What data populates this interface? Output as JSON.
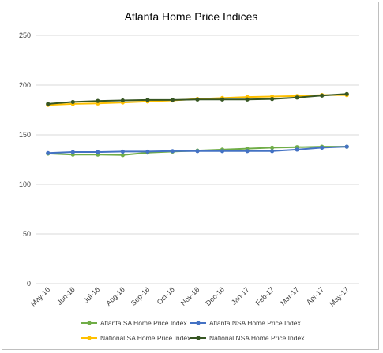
{
  "chart_data": {
    "type": "line",
    "title": "Atlanta Home Price Indices",
    "xlabel": "",
    "ylabel": "",
    "ylim": [
      0,
      250
    ],
    "yticks": [
      0,
      50,
      100,
      150,
      200,
      250
    ],
    "grid": true,
    "legend_position": "bottom",
    "categories": [
      "May-16",
      "Jun-16",
      "Jul-16",
      "Aug-16",
      "Sep-16",
      "Oct-16",
      "Nov-16",
      "Dec-16",
      "Jan-17",
      "Feb-17",
      "Mar-17",
      "Apr-17",
      "May-17"
    ],
    "series": [
      {
        "name": "Atlanta SA Home Price Index",
        "color": "#70ad47",
        "values": [
          131,
          130,
          130,
          129.5,
          132,
          133,
          134,
          135,
          136,
          137,
          137.5,
          138,
          138
        ]
      },
      {
        "name": "Atlanta NSA Home Price Index",
        "color": "#4472c4",
        "values": [
          131.5,
          132.5,
          132.5,
          133,
          133,
          133.5,
          133.5,
          133.5,
          133.5,
          133.5,
          135,
          137,
          138
        ]
      },
      {
        "name": "National SA Home Price Index",
        "color": "#ffc000",
        "values": [
          180,
          181,
          181.5,
          182.5,
          183.5,
          184.5,
          186,
          187,
          188,
          188.5,
          189,
          190,
          190
        ]
      },
      {
        "name": "National NSA Home Price Index",
        "color": "#375623",
        "values": [
          181,
          183,
          184,
          184.5,
          185,
          185,
          185.5,
          185.5,
          185.5,
          186,
          187.5,
          189.5,
          191
        ]
      }
    ]
  }
}
